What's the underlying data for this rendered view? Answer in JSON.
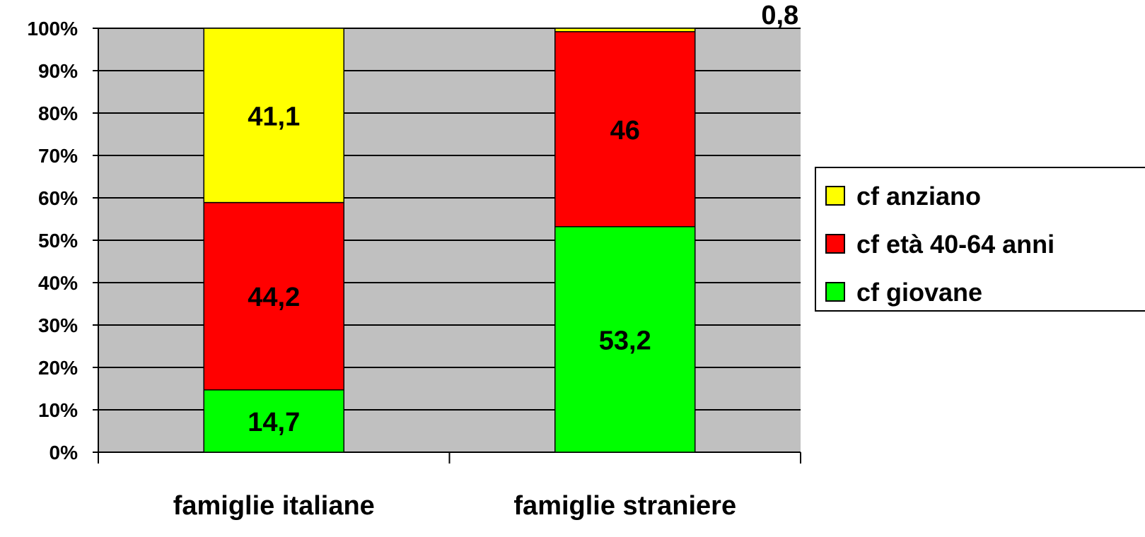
{
  "chart_data": {
    "type": "bar",
    "stacked": true,
    "percent_stacked": true,
    "categories": [
      "famiglie italiane",
      "famiglie straniere"
    ],
    "series": [
      {
        "name": "cf giovane",
        "values": [
          14.7,
          53.2
        ],
        "labels": [
          "14,7",
          "53,2"
        ],
        "color": "#00ff00"
      },
      {
        "name": "cf età 40-64 anni",
        "values": [
          44.2,
          46
        ],
        "labels": [
          "44,2",
          "46"
        ],
        "color": "#ff0000"
      },
      {
        "name": "cf anziano",
        "values": [
          41.1,
          0.8
        ],
        "labels": [
          "41,1",
          "0,8"
        ],
        "color": "#ffff00"
      }
    ],
    "y_ticks": [
      "0%",
      "10%",
      "20%",
      "30%",
      "40%",
      "50%",
      "60%",
      "70%",
      "80%",
      "90%",
      "100%"
    ],
    "ylim": [
      0,
      100
    ],
    "grid": true,
    "plot_background": "#c0c0c0",
    "legend_position": "right",
    "legend_order": [
      "cf anziano",
      "cf età 40-64 anni",
      "cf giovane"
    ]
  }
}
